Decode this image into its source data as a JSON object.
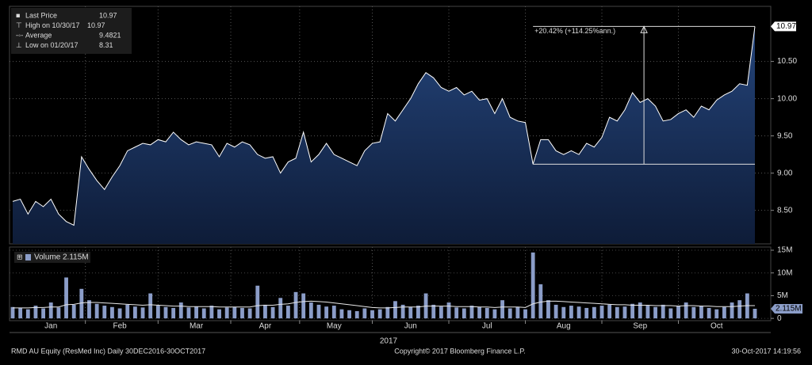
{
  "chart_data": {
    "type": "area",
    "legend": [
      {
        "name": "Last Price",
        "value": "10.97"
      },
      {
        "name": "High on 10/30/17",
        "value": "10.97"
      },
      {
        "name": "Average",
        "value": "9.4821"
      },
      {
        "name": "Low on 01/20/17",
        "value": "8.31"
      }
    ],
    "annotation": "+20.42% (+114.25%ann.)",
    "categories": [
      null,
      null,
      null,
      null,
      null,
      "Jan",
      null,
      null,
      null,
      null,
      null,
      null,
      null,
      null,
      "Feb",
      null,
      null,
      null,
      null,
      null,
      null,
      null,
      null,
      null,
      "Mar",
      null,
      null,
      null,
      null,
      null,
      null,
      null,
      null,
      "Apr",
      null,
      null,
      null,
      null,
      null,
      null,
      null,
      null,
      "May",
      null,
      null,
      null,
      null,
      null,
      null,
      null,
      null,
      null,
      "Jun",
      null,
      null,
      null,
      null,
      null,
      null,
      null,
      null,
      null,
      "Jul",
      null,
      null,
      null,
      null,
      null,
      null,
      null,
      null,
      null,
      "Aug",
      null,
      null,
      null,
      null,
      null,
      null,
      null,
      null,
      null,
      "Sep",
      null,
      null,
      null,
      null,
      null,
      null,
      null,
      null,
      null,
      "Oct",
      null,
      null,
      null,
      null,
      null
    ],
    "year_label": "2017",
    "series": [
      {
        "name": "Last Price",
        "color": "#ffffff",
        "fill": "#1b3560",
        "values": [
          8.62,
          8.65,
          8.45,
          8.62,
          8.55,
          8.65,
          8.45,
          8.35,
          8.3,
          9.22,
          9.05,
          8.9,
          8.78,
          8.95,
          9.1,
          9.3,
          9.35,
          9.4,
          9.38,
          9.45,
          9.42,
          9.55,
          9.45,
          9.38,
          9.42,
          9.4,
          9.38,
          9.22,
          9.4,
          9.35,
          9.42,
          9.38,
          9.25,
          9.2,
          9.22,
          9.0,
          9.15,
          9.2,
          9.55,
          9.15,
          9.25,
          9.4,
          9.25,
          9.2,
          9.15,
          9.1,
          9.3,
          9.4,
          9.42,
          9.8,
          9.7,
          9.85,
          10.0,
          10.2,
          10.35,
          10.28,
          10.15,
          10.1,
          10.15,
          10.05,
          10.1,
          9.98,
          10.0,
          9.8,
          10.0,
          9.75,
          9.7,
          9.68,
          9.12,
          9.45,
          9.45,
          9.3,
          9.25,
          9.3,
          9.25,
          9.4,
          9.35,
          9.48,
          9.75,
          9.7,
          9.85,
          10.08,
          9.95,
          10.0,
          9.9,
          9.7,
          9.72,
          9.8,
          9.85,
          9.75,
          9.9,
          9.85,
          9.98,
          10.05,
          10.1,
          10.2,
          10.18,
          10.97
        ]
      }
    ],
    "ylim": [
      8.05,
      11.24
    ],
    "yticks": [
      {
        "value": 8.5,
        "label": "8.50"
      },
      {
        "value": 9,
        "label": "9.00"
      },
      {
        "value": 9.5,
        "label": "9.50"
      },
      {
        "value": 10,
        "label": "10.00"
      },
      {
        "value": 10.5,
        "label": "10.50"
      }
    ],
    "grid": true,
    "volume": {
      "type": "bar",
      "legend": {
        "name": "Volume",
        "value": "2.115M"
      },
      "series": [
        {
          "name": "Volume",
          "color": "#8b9dc8",
          "values": [
            2.5,
            2.3,
            2.0,
            2.8,
            2.2,
            3.5,
            2.4,
            9.0,
            3.0,
            6.5,
            4.0,
            3.2,
            2.8,
            2.5,
            2.2,
            3.0,
            2.6,
            2.4,
            5.5,
            2.8,
            2.5,
            2.3,
            3.5,
            2.4,
            2.6,
            2.2,
            2.8,
            2.0,
            2.4,
            2.5,
            2.3,
            2.2,
            7.2,
            3.0,
            2.5,
            4.5,
            2.8,
            5.8,
            5.5,
            3.5,
            3.0,
            2.6,
            2.8,
            2.0,
            1.8,
            1.6,
            2.2,
            1.8,
            2.0,
            2.5,
            3.8,
            3.0,
            2.5,
            2.8,
            5.5,
            3.0,
            2.6,
            3.5,
            2.4,
            2.2,
            2.8,
            2.5,
            2.3,
            2.0,
            4.0,
            2.2,
            2.5,
            2.0,
            14.5,
            7.5,
            4.0,
            3.0,
            2.5,
            2.8,
            2.6,
            2.3,
            2.5,
            2.8,
            3.0,
            2.5,
            2.6,
            3.2,
            3.5,
            2.8,
            2.5,
            3.0,
            2.2,
            2.8,
            3.5,
            2.5,
            2.8,
            2.3,
            2.0,
            2.5,
            3.5,
            4.0,
            5.5,
            2.115
          ]
        },
        {
          "color": "#e8e8e8",
          "values": [
            2.3,
            2.3,
            2.3,
            2.4,
            2.4,
            2.5,
            2.5,
            3.0,
            3.1,
            3.4,
            3.5,
            3.5,
            3.4,
            3.3,
            3.2,
            3.1,
            3.0,
            2.9,
            3.0,
            2.9,
            2.8,
            2.7,
            2.7,
            2.6,
            2.6,
            2.6,
            2.6,
            2.5,
            2.5,
            2.5,
            2.5,
            2.5,
            2.8,
            2.9,
            2.9,
            3.1,
            3.2,
            3.5,
            3.7,
            3.8,
            3.7,
            3.6,
            3.4,
            3.2,
            3.0,
            2.8,
            2.6,
            2.4,
            2.3,
            2.3,
            2.4,
            2.5,
            2.5,
            2.5,
            2.7,
            2.7,
            2.7,
            2.7,
            2.6,
            2.6,
            2.6,
            2.5,
            2.5,
            2.4,
            2.5,
            2.5,
            2.5,
            2.4,
            3.2,
            3.6,
            3.8,
            3.8,
            3.7,
            3.6,
            3.5,
            3.4,
            3.3,
            3.2,
            3.1,
            3.0,
            3.0,
            2.9,
            2.9,
            2.9,
            2.8,
            2.8,
            2.8,
            2.7,
            2.8,
            2.8,
            2.7,
            2.7,
            2.6,
            2.6,
            2.6,
            2.7,
            2.8,
            2.8
          ]
        }
      ],
      "ylim": [
        -0.5,
        15.7
      ],
      "yticks": [
        0,
        {
          "value": 5,
          "label": "5M"
        },
        {
          "value": 10,
          "label": "10M"
        },
        {
          "value": 15,
          "label": "15M"
        }
      ]
    },
    "footer": {
      "left": "RMD AU Equity (ResMed Inc)  Daily 30DEC2016-30OCT2017",
      "center": "Copyright© 2017 Bloomberg Finance L.P.",
      "right": "30-Oct-2017 14:19:56"
    }
  }
}
